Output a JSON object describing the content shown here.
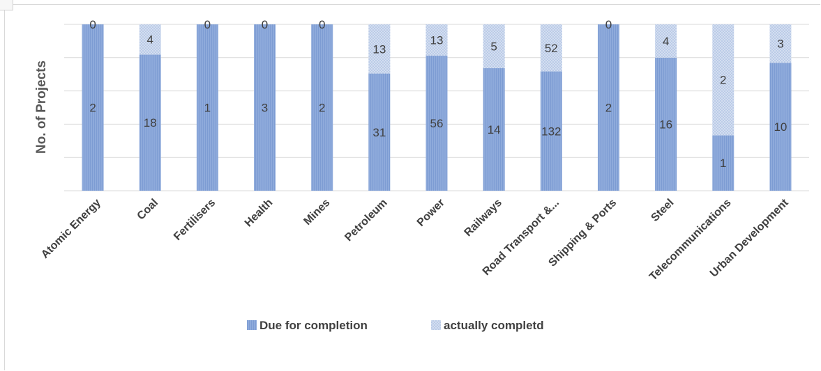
{
  "chart_data": {
    "type": "bar",
    "stacked": true,
    "normalized": true,
    "categories": [
      "Atomic Energy",
      "Coal",
      "Fertilisers",
      "Health",
      "Mines",
      "Petroleum",
      "Power",
      "Railways",
      "Road Transport &...",
      "Shipping & Ports",
      "Steel",
      "Telecommunications",
      "Urban Development"
    ],
    "series": [
      {
        "name": "Due for completion",
        "values": [
          2,
          18,
          1,
          3,
          2,
          31,
          56,
          14,
          132,
          2,
          16,
          1,
          10
        ]
      },
      {
        "name": "actually completd",
        "values": [
          0,
          4,
          0,
          0,
          0,
          13,
          13,
          5,
          52,
          0,
          4,
          2,
          3
        ]
      }
    ],
    "ylabel": "No. of Projects",
    "xlabel": "",
    "grid": true,
    "legend_position": "bottom",
    "colors": {
      "series1": "#8eaadb",
      "series2": "#c6d5ec",
      "grid": "#d9d9d9",
      "text": "#404040"
    }
  }
}
